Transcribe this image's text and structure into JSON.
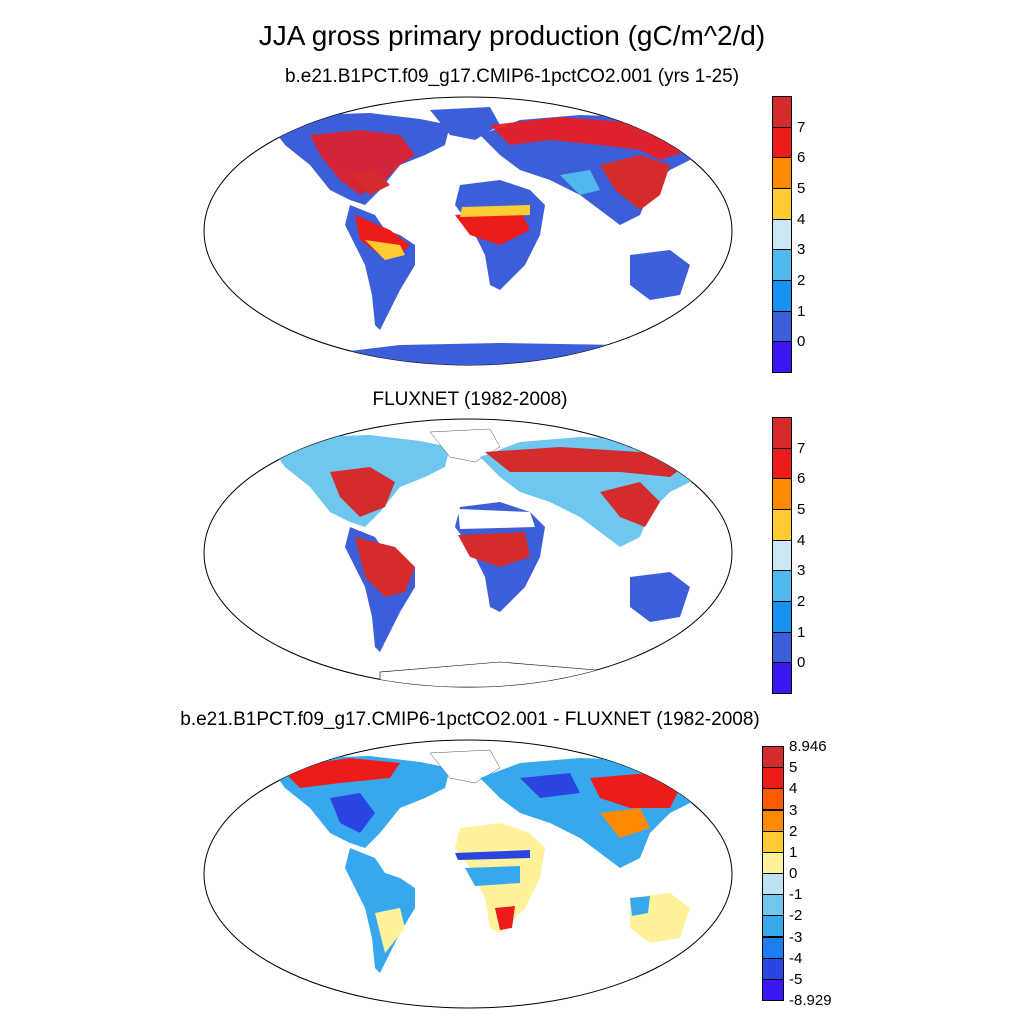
{
  "title": "JJA gross primary production (gC/m^2/d)",
  "panels": [
    {
      "title": "b.e21.B1PCT.f09_g17.CMIP6-1pctCO2.001 (yrs 1-25)"
    },
    {
      "title": "FLUXNET (1982-2008)"
    },
    {
      "title": "b.e21.B1PCT.f09_g17.CMIP6-1pctCO2.001 - FLUXNET (1982-2008)"
    }
  ],
  "colorbars": [
    {
      "labels": [
        "7",
        "6",
        "5",
        "4",
        "3",
        "2",
        "1",
        "0"
      ],
      "colors": [
        "#d42c2c",
        "#ee1b1b",
        "#ff8a00",
        "#ffcc33",
        "#cce8f4",
        "#4fb8ec",
        "#1a90f0",
        "#3c5fd9",
        "#3c16f5"
      ]
    },
    {
      "labels": [
        "7",
        "6",
        "5",
        "4",
        "3",
        "2",
        "1",
        "0"
      ],
      "colors": [
        "#d42c2c",
        "#ee1b1b",
        "#ff8a00",
        "#ffcc33",
        "#cce8f4",
        "#4fb8ec",
        "#1a90f0",
        "#3c5fd9",
        "#3c16f5"
      ]
    },
    {
      "labels": [
        "8.946",
        "5",
        "4",
        "3",
        "2",
        "1",
        "0",
        "-1",
        "-2",
        "-3",
        "-4",
        "-5",
        "-8.929"
      ],
      "colors": [
        "#d42c2c",
        "#ee1b1b",
        "#ff5a00",
        "#ff8a00",
        "#ffcc33",
        "#fff29a",
        "#bfe2f2",
        "#6fc6ee",
        "#38a8ee",
        "#1a7ff0",
        "#2a45e0",
        "#3c16f5"
      ]
    }
  ]
}
